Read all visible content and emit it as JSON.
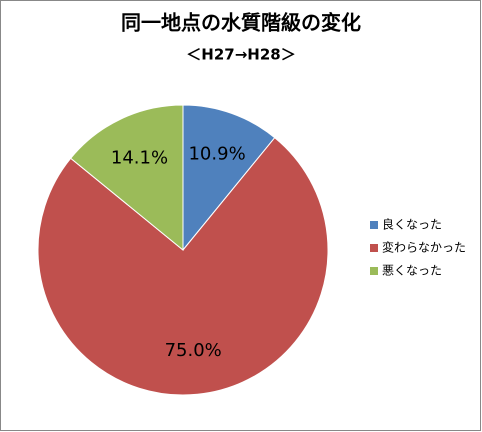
{
  "chart_data": {
    "type": "pie",
    "title": "同一地点の水質階級の変化",
    "subtitle": "＜H27→H28＞",
    "categories": [
      "良くなった",
      "変わらなかった",
      "悪くなった"
    ],
    "values": [
      10.9,
      75.0,
      14.1
    ],
    "value_labels": [
      "10.9%",
      "75.0%",
      "14.1%"
    ],
    "colors": [
      "#4f81bd",
      "#c0504d",
      "#9bbb59"
    ],
    "legend": "right"
  }
}
